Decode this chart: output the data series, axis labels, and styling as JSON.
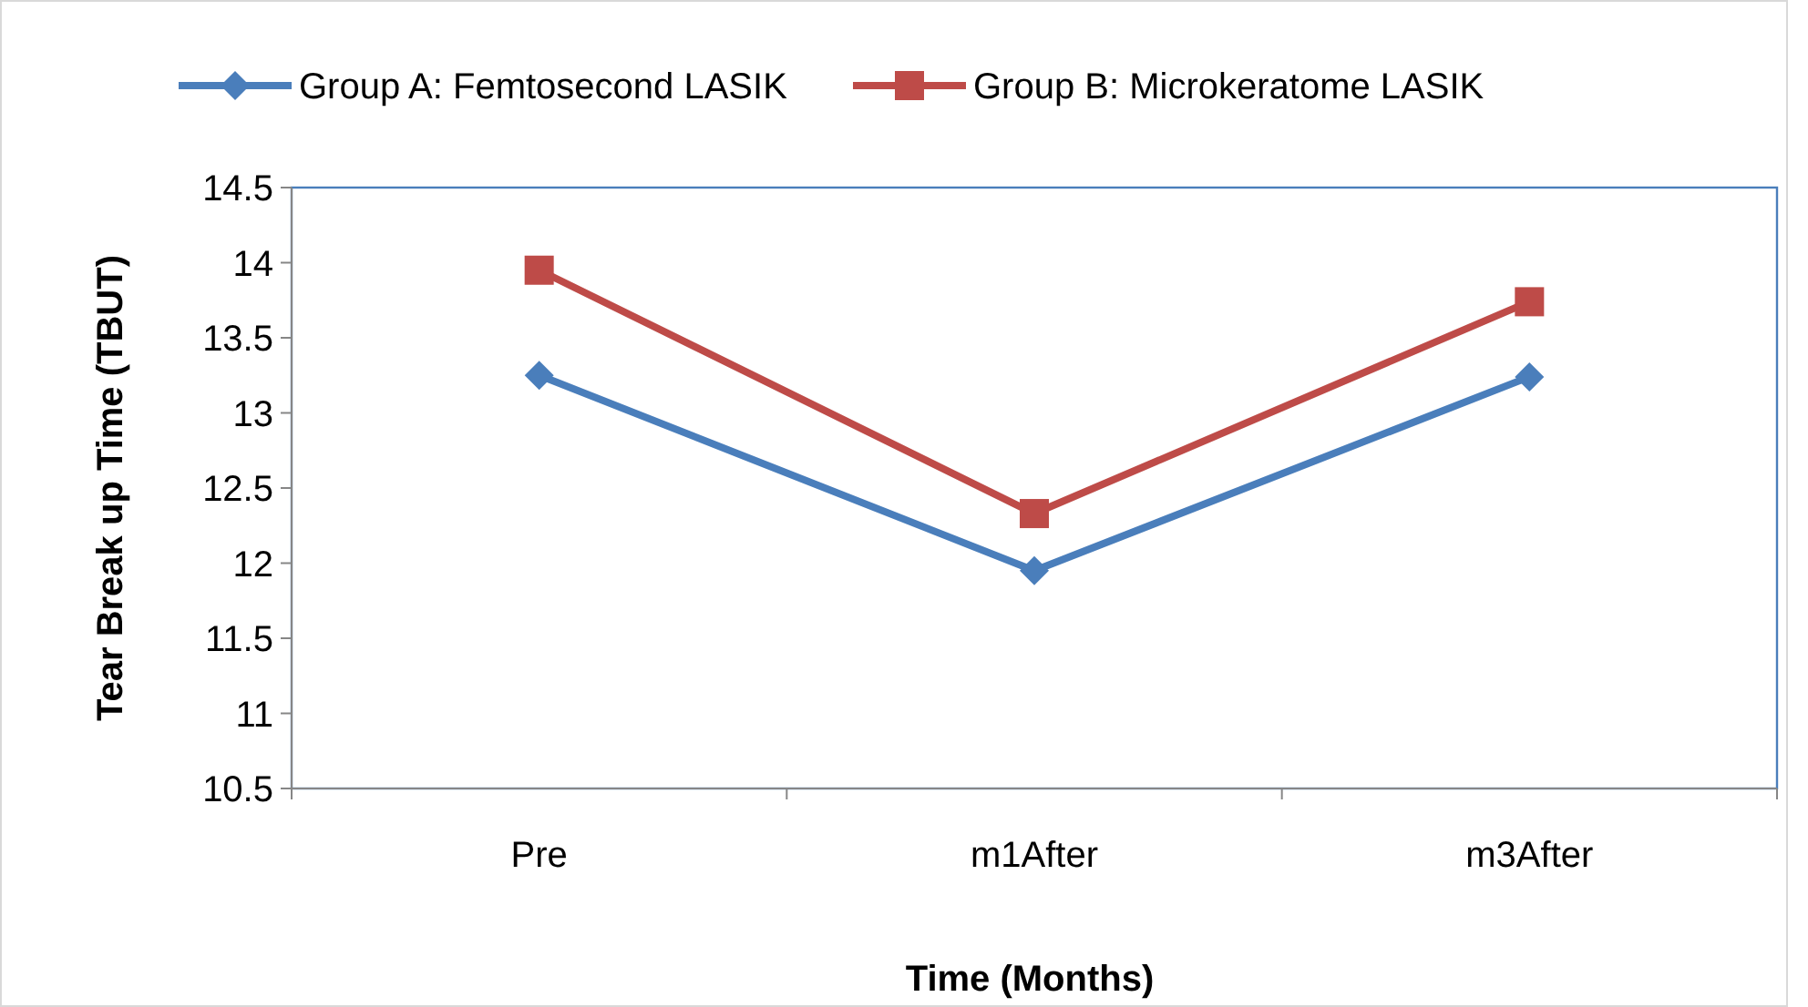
{
  "chart_data": {
    "type": "line",
    "xlabel": "Time (Months)",
    "ylabel": "Tear Break up Time (TBUT)",
    "categories": [
      "Pre",
      "m1After",
      "m3After"
    ],
    "series": [
      {
        "name": "Group A: Femtosecond LASIK",
        "color": "#4a7ebb",
        "values": [
          13.25,
          11.95,
          13.24
        ],
        "marker": "diamond"
      },
      {
        "name": "Group B: Microkeratome LASIK",
        "color": "#be4b48",
        "values": [
          13.95,
          12.33,
          13.74
        ],
        "marker": "square"
      }
    ],
    "ylim": [
      10.5,
      14.5
    ],
    "yticks": [
      10.5,
      11,
      11.5,
      12,
      12.5,
      13,
      13.5,
      14,
      14.5
    ],
    "grid": false,
    "legend": "top",
    "line_style": "solid"
  }
}
